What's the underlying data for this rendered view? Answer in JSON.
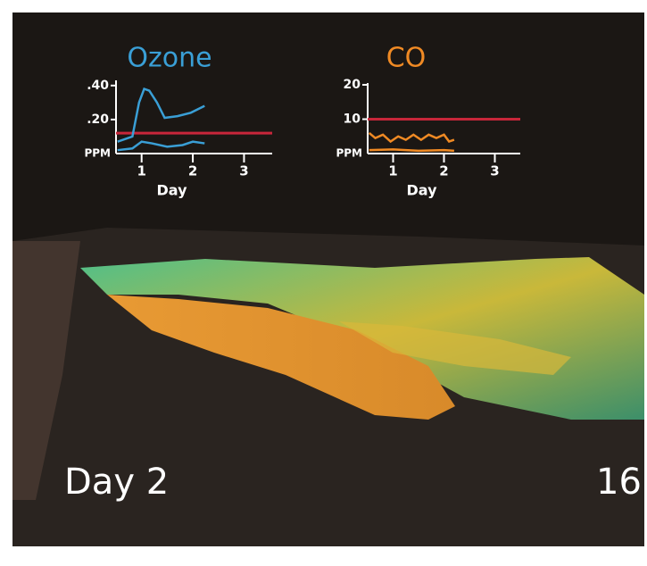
{
  "chart_data": [
    {
      "type": "line",
      "title": "Ozone",
      "title_color": "#3a9fd6",
      "xlabel": "Day",
      "ylabel": "PPM",
      "xlim": [
        0.5,
        3.55
      ],
      "xticks": [
        1,
        2,
        3
      ],
      "ylim": [
        0,
        0.42
      ],
      "yticks": [
        {
          "value": 0.2,
          "label": ".20"
        },
        {
          "value": 0.4,
          "label": ".40"
        }
      ],
      "threshold": 0.12,
      "threshold_color": "#c8263a",
      "series": [
        {
          "color": "#3a9fd6",
          "x": [
            0.53,
            0.82,
            0.95,
            1.05,
            1.15,
            1.3,
            1.45,
            1.7,
            1.96,
            2.23
          ],
          "values": [
            0.07,
            0.1,
            0.3,
            0.38,
            0.37,
            0.3,
            0.21,
            0.22,
            0.24,
            0.28
          ]
        },
        {
          "color": "#3a9fd6",
          "x": [
            0.53,
            0.82,
            1.0,
            1.2,
            1.5,
            1.8,
            2.0,
            2.23
          ],
          "values": [
            0.02,
            0.03,
            0.07,
            0.06,
            0.04,
            0.05,
            0.07,
            0.06
          ]
        }
      ]
    },
    {
      "type": "line",
      "title": "CO",
      "title_color": "#f08a24",
      "xlabel": "Day",
      "ylabel": "PPM",
      "xlim": [
        0.5,
        3.5
      ],
      "xticks": [
        1,
        2,
        3
      ],
      "ylim": [
        0,
        20
      ],
      "yticks": [
        10,
        20
      ],
      "threshold": 10,
      "threshold_color": "#c8263a",
      "series": [
        {
          "color": "#f08a24",
          "x": [
            0.53,
            0.65,
            0.8,
            0.95,
            1.1,
            1.25,
            1.4,
            1.55,
            1.7,
            1.85,
            2.0,
            2.1,
            2.2
          ],
          "values": [
            6,
            4.5,
            5.5,
            3.5,
            5,
            4,
            5.5,
            4,
            5.5,
            4.5,
            5.5,
            3.5,
            4
          ]
        },
        {
          "color": "#f08a24",
          "x": [
            0.53,
            1.0,
            1.5,
            2.0,
            2.2
          ],
          "values": [
            1,
            1.2,
            0.8,
            1,
            0.8
          ]
        }
      ]
    }
  ],
  "caption": {
    "day": "Day 2",
    "number": "16"
  }
}
